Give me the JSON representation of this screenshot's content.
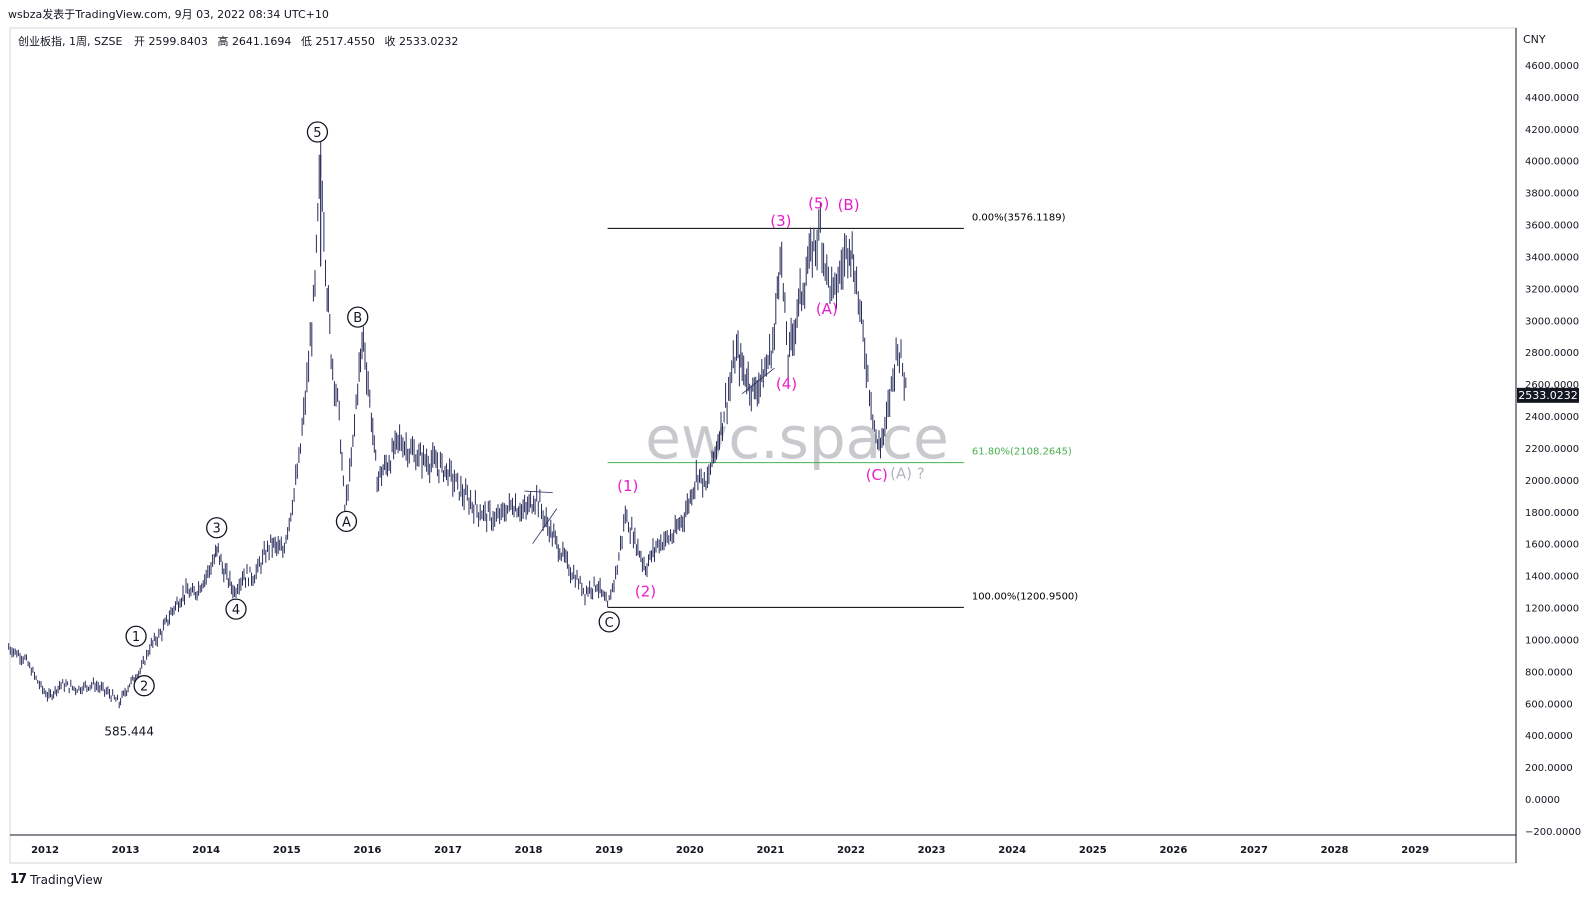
{
  "header": {
    "published": "wsbza发表于TradingView.com, 9月 03, 2022 08:34 UTC+10"
  },
  "legend": {
    "symbol": "创业板指, 1周, SZSE",
    "open_label": "开",
    "open": "2599.8403",
    "high_label": "高",
    "high": "2641.1694",
    "low_label": "低",
    "low": "2517.4550",
    "close_label": "收",
    "close": "2533.0232"
  },
  "watermark": "ewc.space",
  "footer": {
    "logo": "17",
    "brand": "TradingView"
  },
  "chart_data": {
    "type": "line",
    "currency": "CNY",
    "ylim": [
      -200,
      4700
    ],
    "y_ticks": [
      -200,
      0,
      200,
      400,
      600,
      800,
      1000,
      1200,
      1400,
      1600,
      1800,
      2000,
      2200,
      2400,
      2600,
      2800,
      3000,
      3200,
      3400,
      3600,
      3800,
      4000,
      4200,
      4400,
      4600
    ],
    "x_ticks": [
      "2012",
      "2013",
      "2014",
      "2015",
      "2016",
      "2017",
      "2018",
      "2019",
      "2020",
      "2021",
      "2022",
      "2023",
      "2024",
      "2025",
      "2026",
      "2027",
      "2028",
      "2029"
    ],
    "xlim": [
      2011.55,
      2030.0
    ],
    "last_price": "2533.0232",
    "low_label": "585.444",
    "series": [
      {
        "values": [
          [
            2011.55,
            950
          ],
          [
            2011.75,
            880
          ],
          [
            2011.95,
            700
          ],
          [
            2012.05,
            640
          ],
          [
            2012.2,
            720
          ],
          [
            2012.4,
            690
          ],
          [
            2012.6,
            720
          ],
          [
            2012.8,
            660
          ],
          [
            2012.92,
            600
          ],
          [
            2013.05,
            720
          ],
          [
            2013.2,
            820
          ],
          [
            2013.3,
            950
          ],
          [
            2013.45,
            1050
          ],
          [
            2013.6,
            1200
          ],
          [
            2013.75,
            1300
          ],
          [
            2013.85,
            1280
          ],
          [
            2014.0,
            1400
          ],
          [
            2014.1,
            1500
          ],
          [
            2014.15,
            1560
          ],
          [
            2014.2,
            1450
          ],
          [
            2014.35,
            1300
          ],
          [
            2014.45,
            1400
          ],
          [
            2014.6,
            1400
          ],
          [
            2014.8,
            1600
          ],
          [
            2014.95,
            1550
          ],
          [
            2015.05,
            1800
          ],
          [
            2015.15,
            2100
          ],
          [
            2015.25,
            2600
          ],
          [
            2015.35,
            3200
          ],
          [
            2015.42,
            4037
          ],
          [
            2015.5,
            3200
          ],
          [
            2015.55,
            2800
          ],
          [
            2015.65,
            2400
          ],
          [
            2015.72,
            1800
          ],
          [
            2015.8,
            2100
          ],
          [
            2015.88,
            2600
          ],
          [
            2015.95,
            2900
          ],
          [
            2016.05,
            2400
          ],
          [
            2016.12,
            2000
          ],
          [
            2016.25,
            2100
          ],
          [
            2016.4,
            2250
          ],
          [
            2016.6,
            2150
          ],
          [
            2016.85,
            2100
          ],
          [
            2017.0,
            2050
          ],
          [
            2017.2,
            1900
          ],
          [
            2017.4,
            1800
          ],
          [
            2017.6,
            1750
          ],
          [
            2017.8,
            1850
          ],
          [
            2017.95,
            1800
          ],
          [
            2018.1,
            1900
          ],
          [
            2018.2,
            1750
          ],
          [
            2018.35,
            1600
          ],
          [
            2018.5,
            1450
          ],
          [
            2018.7,
            1300
          ],
          [
            2018.85,
            1350
          ],
          [
            2018.98,
            1200
          ],
          [
            2019.1,
            1450
          ],
          [
            2019.2,
            1780
          ],
          [
            2019.3,
            1650
          ],
          [
            2019.45,
            1450
          ],
          [
            2019.6,
            1600
          ],
          [
            2019.8,
            1650
          ],
          [
            2019.95,
            1800
          ],
          [
            2020.1,
            2050
          ],
          [
            2020.2,
            1950
          ],
          [
            2020.35,
            2250
          ],
          [
            2020.5,
            2600
          ],
          [
            2020.58,
            2800
          ],
          [
            2020.65,
            2700
          ],
          [
            2020.8,
            2550
          ],
          [
            2020.95,
            2700
          ],
          [
            2021.05,
            2900
          ],
          [
            2021.12,
            3470
          ],
          [
            2021.22,
            2750
          ],
          [
            2021.35,
            3100
          ],
          [
            2021.5,
            3400
          ],
          [
            2021.62,
            3576
          ],
          [
            2021.7,
            3300
          ],
          [
            2021.78,
            3150
          ],
          [
            2021.9,
            3350
          ],
          [
            2021.98,
            3520
          ],
          [
            2022.05,
            3300
          ],
          [
            2022.15,
            2900
          ],
          [
            2022.25,
            2500
          ],
          [
            2022.33,
            2200
          ],
          [
            2022.42,
            2300
          ],
          [
            2022.52,
            2650
          ],
          [
            2022.58,
            2850
          ],
          [
            2022.64,
            2700
          ],
          [
            2022.7,
            2533
          ]
        ]
      }
    ],
    "fib_levels": [
      {
        "label": "0.00%(3576.1189)",
        "value": 3576.1189,
        "color": "#000000"
      },
      {
        "label": "61.80%(2108.2645)",
        "value": 2108.2645,
        "color": "#4caf50"
      },
      {
        "label": "100.00%(1200.9500)",
        "value": 1200.95,
        "color": "#000000"
      }
    ],
    "fib_x_range": [
      2018.98,
      2023.4
    ],
    "wave_labels_circled": [
      {
        "text": "1",
        "x": 2013.13,
        "y": 1020
      },
      {
        "text": "2",
        "x": 2013.23,
        "y": 710
      },
      {
        "text": "3",
        "x": 2014.13,
        "y": 1700
      },
      {
        "text": "4",
        "x": 2014.37,
        "y": 1190
      },
      {
        "text": "5",
        "x": 2015.38,
        "y": 4180
      },
      {
        "text": "A",
        "x": 2015.74,
        "y": 1740
      },
      {
        "text": "B",
        "x": 2015.88,
        "y": 3020
      },
      {
        "text": "C",
        "x": 2019.0,
        "y": 1110
      }
    ],
    "wave_labels_pink": [
      {
        "text": "(1)",
        "x": 2019.23,
        "y": 1930
      },
      {
        "text": "(2)",
        "x": 2019.45,
        "y": 1270
      },
      {
        "text": "(3)",
        "x": 2021.13,
        "y": 3590
      },
      {
        "text": "(4)",
        "x": 2021.2,
        "y": 2570
      },
      {
        "text": "(5)",
        "x": 2021.6,
        "y": 3700
      },
      {
        "text": "(B)",
        "x": 2021.97,
        "y": 3690
      },
      {
        "text": "(A)",
        "x": 2021.7,
        "y": 3040
      },
      {
        "text": "(C)",
        "x": 2022.32,
        "y": 2000
      }
    ],
    "wave_label_gray": {
      "text": "(A) ?",
      "x": 2022.7,
      "y": 2010
    }
  }
}
